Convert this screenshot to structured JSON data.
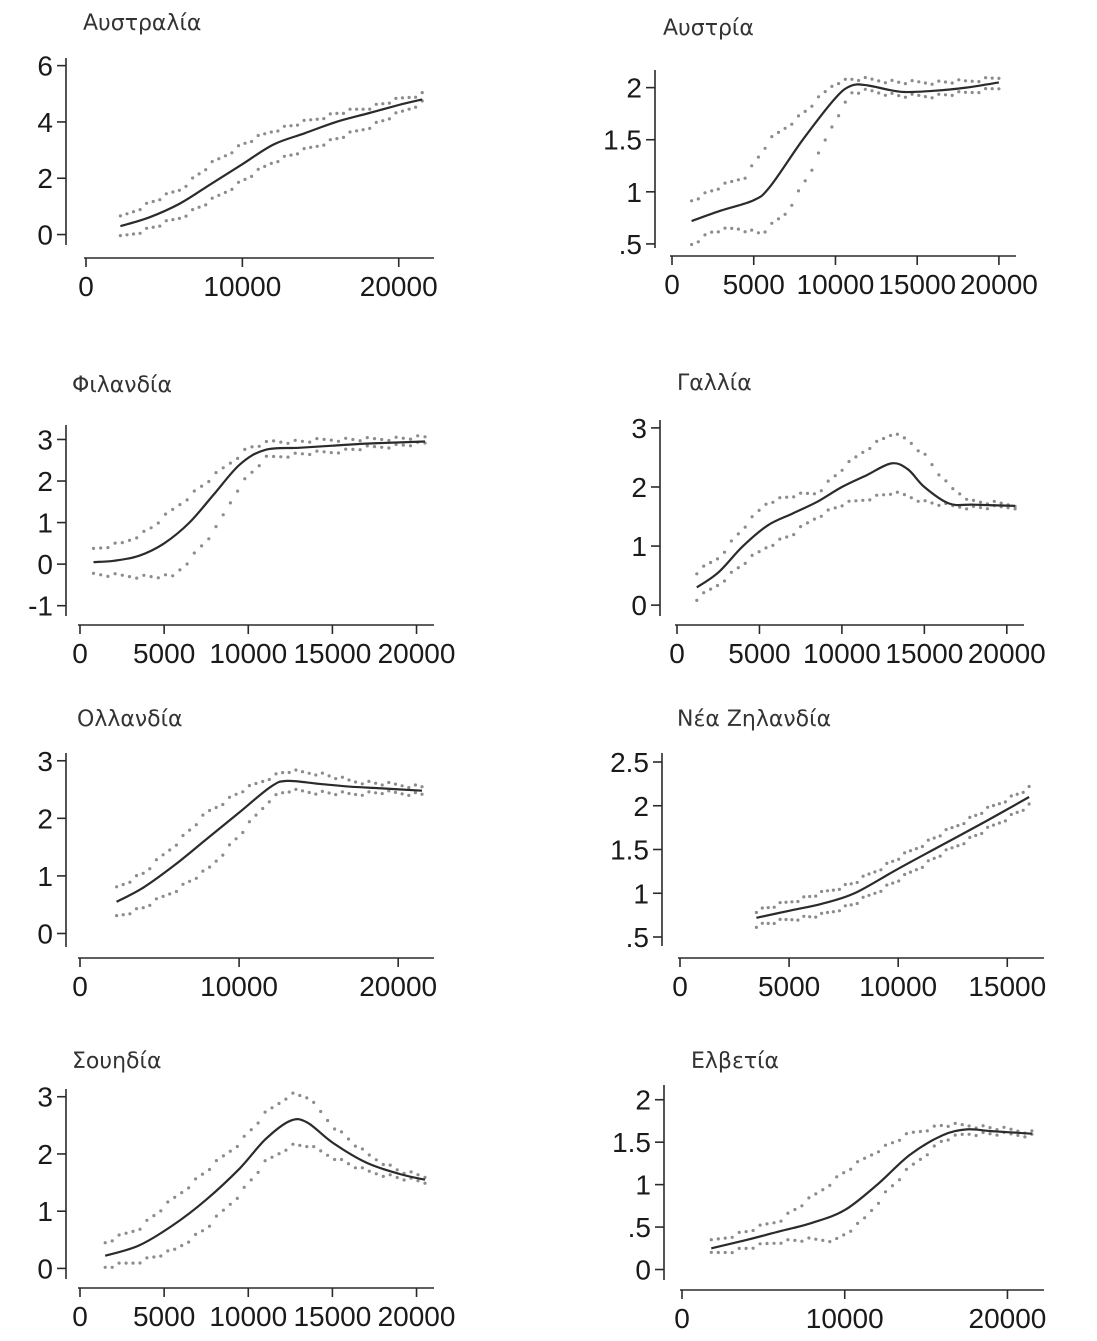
{
  "chart_data": [
    {
      "type": "line",
      "title": "Αυστραλία",
      "xlim": [
        0,
        22000
      ],
      "ylim": [
        -0.3,
        6.2
      ],
      "xticks": [
        0,
        10000,
        20000
      ],
      "xtick_labels": [
        "0",
        "10000",
        "20000"
      ],
      "yticks": [
        0,
        2,
        4,
        6
      ],
      "ytick_labels": [
        "0",
        "2",
        "4",
        "6"
      ],
      "series": [
        {
          "role": "fit",
          "x": [
            2200,
            4000,
            6000,
            8000,
            10000,
            12000,
            14000,
            16000,
            18000,
            20000,
            21500
          ],
          "y": [
            0.3,
            0.6,
            1.1,
            1.8,
            2.5,
            3.2,
            3.6,
            4.0,
            4.3,
            4.6,
            4.8
          ]
        },
        {
          "role": "upper",
          "x": [
            2200,
            4000,
            6000,
            8000,
            10000,
            12000,
            14000,
            16000,
            18000,
            20000,
            21500
          ],
          "y": [
            0.6,
            1.1,
            1.6,
            2.5,
            3.2,
            3.7,
            4.0,
            4.3,
            4.5,
            4.8,
            5.0
          ]
        },
        {
          "role": "lower",
          "x": [
            2200,
            4000,
            6000,
            8000,
            10000,
            12000,
            14000,
            16000,
            18000,
            20000,
            21500
          ],
          "y": [
            -0.1,
            0.2,
            0.6,
            1.2,
            1.9,
            2.6,
            3.0,
            3.4,
            3.8,
            4.3,
            4.7
          ]
        }
      ]
    },
    {
      "type": "line",
      "title": "Αυστρία",
      "xlim": [
        0,
        20800
      ],
      "ylim": [
        0.48,
        2.15
      ],
      "xticks": [
        0,
        5000,
        10000,
        15000,
        20000
      ],
      "xtick_labels": [
        "0",
        "5000",
        "10000",
        "15000",
        "20000"
      ],
      "yticks": [
        0.5,
        1,
        1.5,
        2
      ],
      "ytick_labels": [
        ".5",
        "1",
        "1.5",
        "2"
      ],
      "series": [
        {
          "role": "fit",
          "x": [
            1200,
            3000,
            5000,
            6000,
            8000,
            10000,
            11000,
            12000,
            14000,
            16000,
            18000,
            20000
          ],
          "y": [
            0.72,
            0.82,
            0.92,
            1.05,
            1.5,
            1.9,
            2.02,
            2.02,
            1.96,
            1.97,
            2.0,
            2.05
          ]
        },
        {
          "role": "upper",
          "x": [
            1200,
            3000,
            4500,
            6000,
            8000,
            10000,
            11000,
            12000,
            14000,
            16000,
            18000,
            20000
          ],
          "y": [
            0.92,
            1.05,
            1.15,
            1.5,
            1.75,
            2.05,
            2.08,
            2.08,
            2.05,
            2.05,
            2.06,
            2.1
          ]
        },
        {
          "role": "lower",
          "x": [
            1200,
            2500,
            4000,
            5500,
            7000,
            8500,
            10000,
            11000,
            12000,
            14000,
            16000,
            18000,
            20000
          ],
          "y": [
            0.5,
            0.62,
            0.65,
            0.6,
            0.8,
            1.2,
            1.7,
            1.95,
            1.97,
            1.92,
            1.92,
            1.95,
            2.0
          ]
        }
      ]
    },
    {
      "type": "line",
      "title": "Φιλανδία",
      "xlim": [
        0,
        20800
      ],
      "ylim": [
        -1.2,
        3.3
      ],
      "xticks": [
        0,
        5000,
        10000,
        15000,
        20000
      ],
      "xtick_labels": [
        "0",
        "5000",
        "10000",
        "15000",
        "20000"
      ],
      "yticks": [
        -1,
        0,
        1,
        2,
        3
      ],
      "ytick_labels": [
        "-1",
        "0",
        "1",
        "2",
        "3"
      ],
      "series": [
        {
          "role": "fit",
          "x": [
            800,
            2000,
            3500,
            5000,
            6500,
            8000,
            9500,
            11000,
            13000,
            15000,
            17000,
            20500
          ],
          "y": [
            0.05,
            0.08,
            0.2,
            0.5,
            1.0,
            1.7,
            2.4,
            2.75,
            2.8,
            2.85,
            2.9,
            2.95
          ]
        },
        {
          "role": "upper",
          "x": [
            800,
            2500,
            4000,
            5500,
            7000,
            8500,
            10000,
            11500,
            13000,
            15000,
            17000,
            20500
          ],
          "y": [
            0.35,
            0.5,
            0.8,
            1.3,
            1.8,
            2.3,
            2.8,
            2.95,
            2.95,
            3.0,
            3.0,
            3.05
          ]
        },
        {
          "role": "lower",
          "x": [
            800,
            2500,
            4000,
            5500,
            6500,
            8000,
            9500,
            11000,
            13000,
            15000,
            17000,
            20500
          ],
          "y": [
            -0.25,
            -0.28,
            -0.3,
            -0.3,
            0.1,
            0.8,
            1.9,
            2.55,
            2.65,
            2.7,
            2.8,
            2.9
          ]
        }
      ]
    },
    {
      "type": "line",
      "title": "Γαλλία",
      "xlim": [
        0,
        20800
      ],
      "ylim": [
        -0.15,
        3.1
      ],
      "xticks": [
        0,
        5000,
        10000,
        15000,
        20000
      ],
      "xtick_labels": [
        "0",
        "5000",
        "10000",
        "15000",
        "20000"
      ],
      "yticks": [
        0,
        1,
        2,
        3
      ],
      "ytick_labels": [
        "0",
        "1",
        "2",
        "3"
      ],
      "series": [
        {
          "role": "fit",
          "x": [
            1200,
            2500,
            4000,
            5500,
            7000,
            8500,
            10000,
            11500,
            13000,
            14000,
            15000,
            16500,
            18000,
            20500
          ],
          "y": [
            0.3,
            0.55,
            1.0,
            1.35,
            1.55,
            1.75,
            2.0,
            2.2,
            2.4,
            2.3,
            2.0,
            1.72,
            1.7,
            1.68
          ]
        },
        {
          "role": "upper",
          "x": [
            1200,
            2500,
            4000,
            5500,
            7000,
            8500,
            10000,
            11500,
            13000,
            14000,
            15000,
            16500,
            18000,
            20500
          ],
          "y": [
            0.55,
            0.8,
            1.3,
            1.75,
            1.85,
            1.9,
            2.3,
            2.65,
            2.9,
            2.8,
            2.55,
            2.0,
            1.75,
            1.7
          ]
        },
        {
          "role": "lower",
          "x": [
            1200,
            2500,
            4000,
            5500,
            7000,
            8500,
            10000,
            11500,
            13000,
            14000,
            15000,
            16500,
            18000,
            20500
          ],
          "y": [
            0.1,
            0.35,
            0.7,
            1.0,
            1.2,
            1.5,
            1.7,
            1.8,
            1.9,
            1.85,
            1.75,
            1.68,
            1.65,
            1.66
          ]
        }
      ]
    },
    {
      "type": "line",
      "title": "Ολλανδία",
      "xlim": [
        0,
        22000
      ],
      "ylim": [
        -0.2,
        3.1
      ],
      "xticks": [
        0,
        10000,
        20000
      ],
      "xtick_labels": [
        "0",
        "10000",
        "20000"
      ],
      "yticks": [
        0,
        1,
        2,
        3
      ],
      "ytick_labels": [
        "0",
        "1",
        "2",
        "3"
      ],
      "series": [
        {
          "role": "fit",
          "x": [
            2300,
            4000,
            6000,
            8000,
            10000,
            12000,
            13000,
            15000,
            17000,
            19000,
            21500
          ],
          "y": [
            0.55,
            0.8,
            1.2,
            1.65,
            2.1,
            2.55,
            2.65,
            2.6,
            2.55,
            2.52,
            2.48
          ]
        },
        {
          "role": "upper",
          "x": [
            2300,
            4000,
            6000,
            8000,
            10000,
            12000,
            13000,
            15000,
            17000,
            19000,
            21500
          ],
          "y": [
            0.8,
            1.05,
            1.55,
            2.1,
            2.45,
            2.72,
            2.82,
            2.78,
            2.65,
            2.6,
            2.55
          ]
        },
        {
          "role": "lower",
          "x": [
            2300,
            4000,
            6000,
            8000,
            10000,
            12000,
            13000,
            15000,
            17000,
            19000,
            21500
          ],
          "y": [
            0.3,
            0.45,
            0.75,
            1.1,
            1.7,
            2.35,
            2.48,
            2.45,
            2.42,
            2.45,
            2.42
          ]
        }
      ]
    },
    {
      "type": "line",
      "title": "Νέα Ζηλανδία",
      "xlim": [
        0,
        16500
      ],
      "ylim": [
        0.42,
        2.58
      ],
      "xticks": [
        0,
        5000,
        10000,
        15000
      ],
      "xtick_labels": [
        "0",
        "5000",
        "10000",
        "15000"
      ],
      "yticks": [
        0.5,
        1,
        1.5,
        2,
        2.5
      ],
      "ytick_labels": [
        ".5",
        "1",
        "1.5",
        "2",
        "2.5"
      ],
      "series": [
        {
          "role": "fit",
          "x": [
            3500,
            5000,
            6500,
            8000,
            10000,
            12000,
            14000,
            16000
          ],
          "y": [
            0.72,
            0.8,
            0.88,
            1.0,
            1.28,
            1.55,
            1.82,
            2.1
          ]
        },
        {
          "role": "upper",
          "x": [
            3500,
            5000,
            6500,
            8000,
            10000,
            12000,
            14000,
            16000
          ],
          "y": [
            0.8,
            0.9,
            1.0,
            1.12,
            1.4,
            1.68,
            1.95,
            2.2
          ]
        },
        {
          "role": "lower",
          "x": [
            3500,
            5000,
            6500,
            8000,
            10000,
            12000,
            14000,
            16000
          ],
          "y": [
            0.63,
            0.7,
            0.75,
            0.88,
            1.15,
            1.45,
            1.72,
            2.0
          ]
        }
      ]
    },
    {
      "type": "line",
      "title": "Σουηδία",
      "xlim": [
        0,
        20800
      ],
      "ylim": [
        -0.15,
        3.1
      ],
      "xticks": [
        0,
        5000,
        10000,
        15000,
        20000
      ],
      "xtick_labels": [
        "0",
        "5000",
        "10000",
        "15000",
        "20000"
      ],
      "yticks": [
        0,
        1,
        2,
        3
      ],
      "ytick_labels": [
        "0",
        "1",
        "2",
        "3"
      ],
      "series": [
        {
          "role": "fit",
          "x": [
            1500,
            3500,
            5500,
            7500,
            9500,
            11000,
            12500,
            13500,
            15000,
            17000,
            19000,
            20500
          ],
          "y": [
            0.22,
            0.4,
            0.75,
            1.2,
            1.75,
            2.25,
            2.58,
            2.55,
            2.2,
            1.85,
            1.65,
            1.55
          ]
        },
        {
          "role": "upper",
          "x": [
            1500,
            3500,
            5500,
            7500,
            9500,
            11000,
            12500,
            13500,
            15000,
            17000,
            19000,
            20500
          ],
          "y": [
            0.45,
            0.7,
            1.2,
            1.7,
            2.2,
            2.7,
            3.05,
            3.0,
            2.5,
            2.0,
            1.7,
            1.6
          ]
        },
        {
          "role": "lower",
          "x": [
            1500,
            3500,
            5500,
            7500,
            9500,
            11000,
            12500,
            13500,
            15000,
            17000,
            19000,
            20500
          ],
          "y": [
            0.02,
            0.12,
            0.3,
            0.7,
            1.3,
            1.85,
            2.15,
            2.15,
            1.95,
            1.7,
            1.58,
            1.5
          ]
        }
      ]
    },
    {
      "type": "line",
      "title": "Ελβετία",
      "xlim": [
        0,
        22000
      ],
      "ylim": [
        -0.1,
        2.15
      ],
      "xticks": [
        0,
        10000,
        20000
      ],
      "xtick_labels": [
        "0",
        "10000",
        "20000"
      ],
      "yticks": [
        0,
        0.5,
        1,
        1.5,
        2
      ],
      "ytick_labels": [
        "0",
        ".5",
        "1",
        "1.5",
        "2"
      ],
      "series": [
        {
          "role": "fit",
          "x": [
            1800,
            4000,
            6000,
            8000,
            10000,
            12000,
            14000,
            16000,
            17500,
            19000,
            21500
          ],
          "y": [
            0.25,
            0.35,
            0.45,
            0.55,
            0.7,
            1.0,
            1.35,
            1.58,
            1.65,
            1.63,
            1.6
          ]
        },
        {
          "role": "upper",
          "x": [
            1800,
            4000,
            6000,
            8000,
            10000,
            12000,
            14000,
            16000,
            17500,
            19000,
            21500
          ],
          "y": [
            0.33,
            0.45,
            0.58,
            0.85,
            1.15,
            1.4,
            1.6,
            1.7,
            1.7,
            1.67,
            1.62
          ]
        },
        {
          "role": "lower",
          "x": [
            1800,
            4000,
            6000,
            7500,
            9500,
            11000,
            12500,
            14000,
            16000,
            17500,
            19000,
            21500
          ],
          "y": [
            0.18,
            0.25,
            0.33,
            0.35,
            0.35,
            0.55,
            0.9,
            1.2,
            1.52,
            1.6,
            1.6,
            1.58
          ]
        }
      ]
    }
  ]
}
